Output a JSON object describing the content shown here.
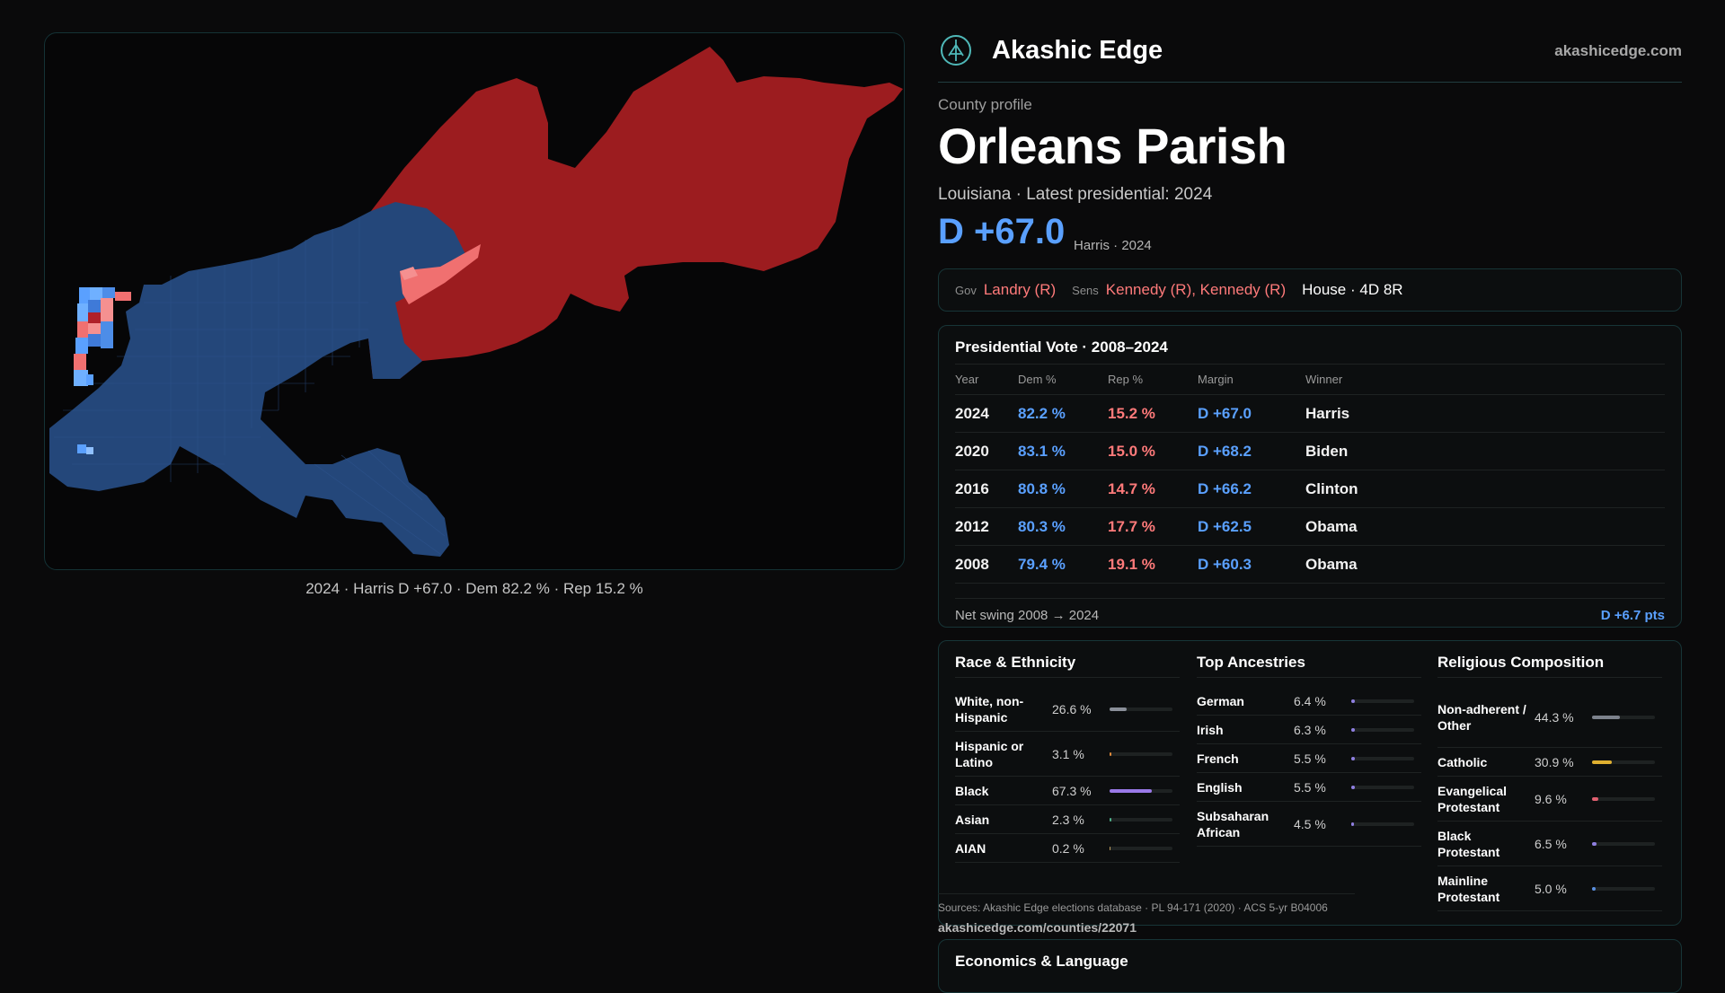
{
  "map": {
    "caption": "2024 · Harris D +67.0 · Dem 82.2 % · Rep 15.2 %"
  },
  "brand": {
    "name": "Akashic Edge",
    "url": "akashicedge.com"
  },
  "profile": {
    "eyebrow": "County profile",
    "title": "Orleans Parish",
    "subtitle": "Louisiana · Latest presidential: 2024",
    "margin": "D +67.0",
    "margin_note": "Harris · 2024"
  },
  "officials": {
    "gov_label": "Gov",
    "gov": "Landry (R)",
    "sens_label": "Sens",
    "sens": "Kennedy (R), Kennedy (R)",
    "house": "House · 4D 8R"
  },
  "pres": {
    "title": "Presidential Vote · 2008–2024",
    "headers": [
      "Year",
      "Dem %",
      "Rep %",
      "Margin",
      "Winner"
    ],
    "rows": [
      {
        "year": "2024",
        "dem": "82.2 %",
        "rep": "15.2 %",
        "margin": "D +67.0",
        "winner": "Harris"
      },
      {
        "year": "2020",
        "dem": "83.1 %",
        "rep": "15.0 %",
        "margin": "D +68.2",
        "winner": "Biden"
      },
      {
        "year": "2016",
        "dem": "80.8 %",
        "rep": "14.7 %",
        "margin": "D +66.2",
        "winner": "Clinton"
      },
      {
        "year": "2012",
        "dem": "80.3 %",
        "rep": "17.7 %",
        "margin": "D +62.5",
        "winner": "Obama"
      },
      {
        "year": "2008",
        "dem": "79.4 %",
        "rep": "19.1 %",
        "margin": "D +60.3",
        "winner": "Obama"
      }
    ],
    "swing_label": "Net swing 2008 → 2024",
    "swing_value": "D +6.7 pts"
  },
  "race": {
    "title": "Race & Ethnicity",
    "rows": [
      {
        "name": "White, non-Hispanic",
        "pct": "26.6 %",
        "value": 26.6,
        "color": "#8a8f99"
      },
      {
        "name": "Hispanic or Latino",
        "pct": "3.1 %",
        "value": 3.1,
        "color": "#e08a3a"
      },
      {
        "name": "Black",
        "pct": "67.3 %",
        "value": 67.3,
        "color": "#9a79e8"
      },
      {
        "name": "Asian",
        "pct": "2.3 %",
        "value": 2.3,
        "color": "#4fb08a"
      },
      {
        "name": "AIAN",
        "pct": "0.2 %",
        "value": 0.2,
        "color": "#c0a060"
      }
    ]
  },
  "ancestry": {
    "title": "Top Ancestries",
    "rows": [
      {
        "name": "German",
        "pct": "6.4 %",
        "value": 6.4,
        "color": "#8f7fe0"
      },
      {
        "name": "Irish",
        "pct": "6.3 %",
        "value": 6.3,
        "color": "#8f7fe0"
      },
      {
        "name": "French",
        "pct": "5.5 %",
        "value": 5.5,
        "color": "#8f7fe0"
      },
      {
        "name": "English",
        "pct": "5.5 %",
        "value": 5.5,
        "color": "#8f7fe0"
      },
      {
        "name": "Subsaharan African",
        "pct": "4.5 %",
        "value": 4.5,
        "color": "#8f7fe0"
      }
    ]
  },
  "religion": {
    "title": "Religious Composition",
    "rows": [
      {
        "name": "Non-adherent / Other",
        "pct": "44.3 %",
        "value": 44.3,
        "color": "#7d828c"
      },
      {
        "name": "Catholic",
        "pct": "30.9 %",
        "value": 30.9,
        "color": "#e0b030"
      },
      {
        "name": "Evangelical Protestant",
        "pct": "9.6 %",
        "value": 9.6,
        "color": "#e06070"
      },
      {
        "name": "Black Protestant",
        "pct": "6.5 %",
        "value": 6.5,
        "color": "#8f7fe0"
      },
      {
        "name": "Mainline Protestant",
        "pct": "5.0 %",
        "value": 5.0,
        "color": "#5a8fe0"
      }
    ]
  },
  "sources": "Sources: Akashic Edge elections database · PL 94-171 (2020) · ACS 5-yr B04006",
  "source_url": "akashicedge.com/counties/22071",
  "econ_title": "Economics & Language",
  "colors": {
    "dem": "#5aa0ff",
    "rep": "#ff7a7a",
    "map_dem": "#24477a",
    "map_rep": "#9c1c1f"
  }
}
